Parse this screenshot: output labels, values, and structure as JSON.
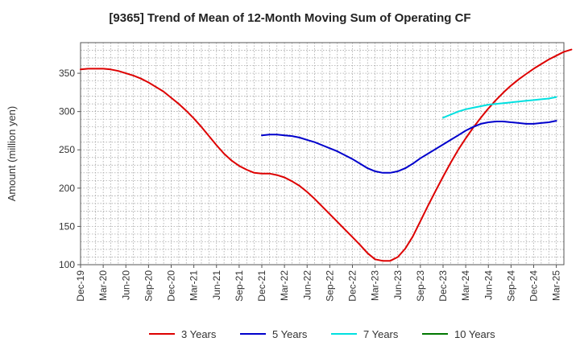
{
  "chart_data": {
    "type": "line",
    "title": "[9365]  Trend of Mean of 12-Month Moving Sum of Operating CF",
    "ylabel": "Amount (million yen)",
    "xlabel": "",
    "ylim": [
      100,
      390
    ],
    "yticks": [
      100,
      150,
      200,
      250,
      300,
      350
    ],
    "x_start": "Dec-19",
    "x_end": "Mar-25",
    "x_step_months": 1,
    "xtick_labels": [
      "Dec-19",
      "Mar-20",
      "Jun-20",
      "Sep-20",
      "Dec-20",
      "Mar-21",
      "Jun-21",
      "Sep-21",
      "Dec-21",
      "Mar-22",
      "Jun-22",
      "Sep-22",
      "Dec-22",
      "Mar-23",
      "Jun-23",
      "Sep-23",
      "Dec-23",
      "Mar-24",
      "Jun-24",
      "Sep-24",
      "Dec-24",
      "Mar-25"
    ],
    "grid": true,
    "legend_position": "bottom",
    "series": [
      {
        "name": "3 Years",
        "color": "#dd0000",
        "start_index": 0,
        "values": [
          355,
          356,
          356,
          356,
          355,
          353,
          350,
          347,
          343,
          338,
          332,
          326,
          318,
          310,
          301,
          291,
          280,
          268,
          256,
          245,
          236,
          229,
          224,
          220,
          219,
          219,
          217,
          214,
          209,
          203,
          195,
          186,
          176,
          166,
          156,
          146,
          136,
          126,
          115,
          107,
          105,
          105,
          110,
          121,
          137,
          157,
          177,
          196,
          215,
          233,
          250,
          265,
          279,
          292,
          304,
          315,
          325,
          334,
          342,
          349,
          356,
          362,
          368,
          373,
          378,
          381
        ]
      },
      {
        "name": "5 Years",
        "color": "#0000cc",
        "start_index": 24,
        "values": [
          269,
          270,
          270,
          269,
          268,
          266,
          263,
          260,
          256,
          252,
          248,
          243,
          238,
          232,
          226,
          222,
          220,
          220,
          222,
          226,
          232,
          239,
          245,
          251,
          257,
          263,
          269,
          275,
          280,
          284,
          286,
          287,
          287,
          286,
          285,
          284,
          284,
          285,
          286,
          288
        ]
      },
      {
        "name": "7 Years",
        "color": "#00e0e0",
        "start_index": 48,
        "values": [
          292,
          296,
          300,
          303,
          305,
          307,
          309,
          310,
          311,
          312,
          313,
          314,
          315,
          316,
          317,
          319
        ]
      },
      {
        "name": "10 Years",
        "color": "#007700",
        "start_index": 0,
        "values": []
      }
    ]
  }
}
